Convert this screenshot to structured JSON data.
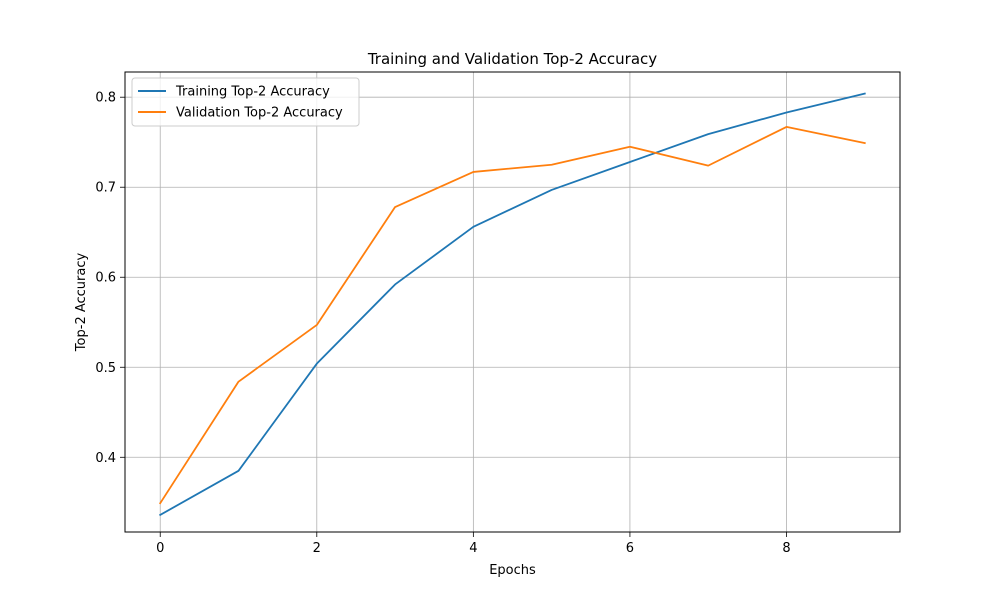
{
  "chart_data": {
    "type": "line",
    "title": "Training and Validation Top-2 Accuracy",
    "xlabel": "Epochs",
    "ylabel": "Top-2 Accuracy",
    "x": [
      0,
      1,
      2,
      3,
      4,
      5,
      6,
      7,
      8,
      9
    ],
    "xlim": [
      -0.45,
      9.45
    ],
    "ylim": [
      0.317,
      0.828
    ],
    "xticks": [
      0,
      2,
      4,
      6,
      8
    ],
    "yticks": [
      0.4,
      0.5,
      0.6,
      0.7,
      0.8
    ],
    "xtick_labels": [
      "0",
      "2",
      "4",
      "6",
      "8"
    ],
    "ytick_labels": [
      "0.4",
      "0.5",
      "0.6",
      "0.7",
      "0.8"
    ],
    "grid": true,
    "legend_position": "top-left",
    "series": [
      {
        "name": "Training Top-2 Accuracy",
        "color": "#1f77b4",
        "values": [
          0.336,
          0.385,
          0.504,
          0.592,
          0.656,
          0.697,
          0.728,
          0.759,
          0.783,
          0.804
        ]
      },
      {
        "name": "Validation Top-2 Accuracy",
        "color": "#ff7f0e",
        "values": [
          0.349,
          0.484,
          0.547,
          0.678,
          0.717,
          0.725,
          0.745,
          0.724,
          0.767,
          0.749
        ]
      }
    ]
  }
}
